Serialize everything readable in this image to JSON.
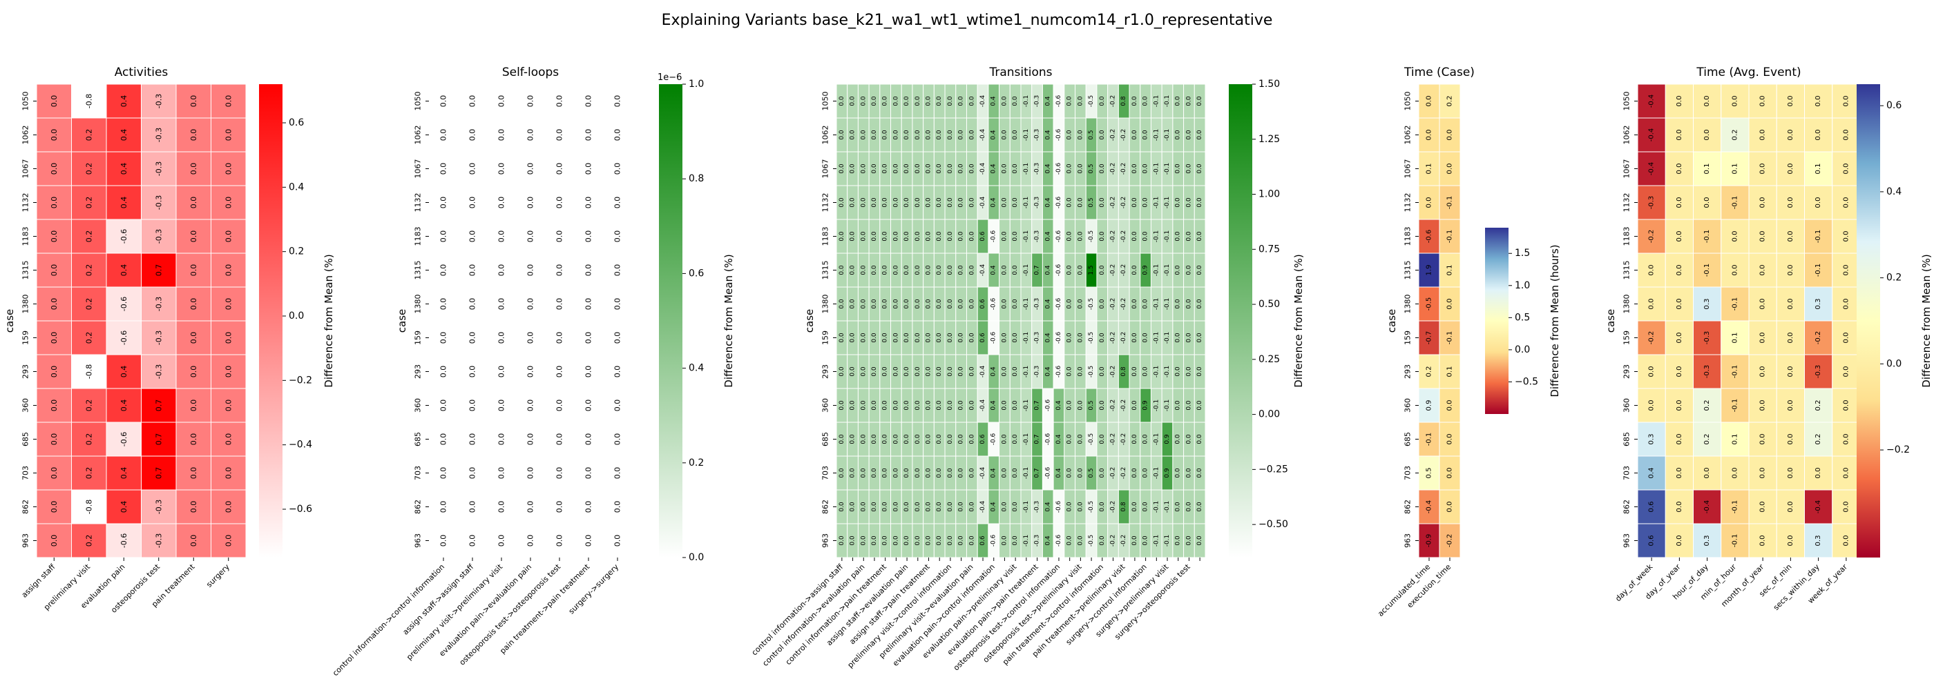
{
  "figure": {
    "title": "Explaining Variants base_k21_wa1_wt1_wtime1_numcom14_r1.0_representative"
  },
  "chart_data": [
    {
      "type": "heatmap",
      "title": "Activities",
      "ylabel": "case",
      "colorbar_label": "Difference from Mean (%)",
      "colormap": [
        "#ffffff",
        "#ff0000"
      ],
      "vmin": -0.75,
      "vmax": 0.72,
      "colorbar_ticks": [
        -0.6,
        -0.4,
        -0.2,
        0.0,
        0.2,
        0.4,
        0.6
      ],
      "colorbar_tick_labels": [
        "−0.6",
        "−0.4",
        "−0.2",
        "0.0",
        "0.2",
        "0.4",
        "0.6"
      ],
      "rows": [
        "1050",
        "1062",
        "1067",
        "1132",
        "1183",
        "1315",
        "1380",
        "159",
        "293",
        "360",
        "685",
        "703",
        "862",
        "963"
      ],
      "columns": [
        "assign staff",
        "preliminary visit",
        "evaluation pain",
        "osteoporosis test",
        "pain treatment",
        "surgery"
      ],
      "values": [
        [
          0.0,
          -0.8,
          0.4,
          -0.3,
          0.0,
          0.0
        ],
        [
          0.0,
          0.2,
          0.4,
          -0.3,
          0.0,
          0.0
        ],
        [
          0.0,
          0.2,
          0.4,
          -0.3,
          0.0,
          0.0
        ],
        [
          0.0,
          0.2,
          0.4,
          -0.3,
          0.0,
          0.0
        ],
        [
          0.0,
          0.2,
          -0.6,
          -0.3,
          0.0,
          0.0
        ],
        [
          0.0,
          0.2,
          0.4,
          0.7,
          0.0,
          0.0
        ],
        [
          0.0,
          0.2,
          -0.6,
          -0.3,
          0.0,
          0.0
        ],
        [
          0.0,
          0.2,
          -0.6,
          -0.3,
          0.0,
          0.0
        ],
        [
          0.0,
          -0.8,
          0.4,
          -0.3,
          0.0,
          0.0
        ],
        [
          0.0,
          0.2,
          0.4,
          0.7,
          0.0,
          0.0
        ],
        [
          0.0,
          0.2,
          -0.6,
          0.7,
          0.0,
          0.0
        ],
        [
          0.0,
          0.2,
          0.4,
          0.7,
          0.0,
          0.0
        ],
        [
          0.0,
          -0.8,
          0.4,
          -0.3,
          0.0,
          0.0
        ],
        [
          0.0,
          0.2,
          -0.6,
          -0.3,
          0.0,
          0.0
        ]
      ]
    },
    {
      "type": "heatmap",
      "title": "Self-loops",
      "ylabel": "case",
      "colorbar_label": "Difference from Mean (%)",
      "colormap": [
        "#ffffff",
        "#008000"
      ],
      "vmin": 0.0,
      "vmax": 1.0,
      "colorbar_ticks": [
        0.0,
        0.2,
        0.4,
        0.6,
        0.8,
        1.0
      ],
      "colorbar_tick_labels": [
        "0.0",
        "0.2",
        "0.4",
        "0.6",
        "0.8",
        "1.0"
      ],
      "colorbar_offset_text": "1e−6",
      "rows": [
        "1050",
        "1062",
        "1067",
        "1132",
        "1183",
        "1315",
        "1380",
        "159",
        "293",
        "360",
        "685",
        "703",
        "862",
        "963"
      ],
      "columns": [
        "control information->control information",
        "assign staff->assign staff",
        "preliminary visit->preliminary visit",
        "evaluation pain->evaluation pain",
        "osteoporosis test->osteoporosis test",
        "pain treatment->pain treatment",
        "surgery->surgery"
      ],
      "values": [
        [
          0.0,
          0.0,
          0.0,
          0.0,
          0.0,
          0.0,
          0.0
        ],
        [
          0.0,
          0.0,
          0.0,
          0.0,
          0.0,
          0.0,
          0.0
        ],
        [
          0.0,
          0.0,
          0.0,
          0.0,
          0.0,
          0.0,
          0.0
        ],
        [
          0.0,
          0.0,
          0.0,
          0.0,
          0.0,
          0.0,
          0.0
        ],
        [
          0.0,
          0.0,
          0.0,
          0.0,
          0.0,
          0.0,
          0.0
        ],
        [
          0.0,
          0.0,
          0.0,
          0.0,
          0.0,
          0.0,
          0.0
        ],
        [
          0.0,
          0.0,
          0.0,
          0.0,
          0.0,
          0.0,
          0.0
        ],
        [
          0.0,
          0.0,
          0.0,
          0.0,
          0.0,
          0.0,
          0.0
        ],
        [
          0.0,
          0.0,
          0.0,
          0.0,
          0.0,
          0.0,
          0.0
        ],
        [
          0.0,
          0.0,
          0.0,
          0.0,
          0.0,
          0.0,
          0.0
        ],
        [
          0.0,
          0.0,
          0.0,
          0.0,
          0.0,
          0.0,
          0.0
        ],
        [
          0.0,
          0.0,
          0.0,
          0.0,
          0.0,
          0.0,
          0.0
        ],
        [
          0.0,
          0.0,
          0.0,
          0.0,
          0.0,
          0.0,
          0.0
        ],
        [
          0.0,
          0.0,
          0.0,
          0.0,
          0.0,
          0.0,
          0.0
        ]
      ]
    },
    {
      "type": "heatmap",
      "title": "Transitions",
      "ylabel": "case",
      "colorbar_label": "Difference from Mean (%)",
      "colormap": [
        "#ffffff",
        "#008000"
      ],
      "vmin": -0.65,
      "vmax": 1.5,
      "colorbar_ticks": [
        -0.5,
        -0.25,
        0.0,
        0.25,
        0.5,
        0.75,
        1.0,
        1.25,
        1.5
      ],
      "colorbar_tick_labels": [
        "−0.50",
        "−0.25",
        "0.00",
        "0.25",
        "0.50",
        "0.75",
        "1.00",
        "1.25",
        "1.50"
      ],
      "rows": [
        "1050",
        "1062",
        "1067",
        "1132",
        "1183",
        "1315",
        "1380",
        "159",
        "293",
        "360",
        "685",
        "703",
        "862",
        "963"
      ],
      "columns": [
        "control information->assign staff",
        "",
        "control information->evaluation pain",
        "",
        "control information->pain treatment",
        "",
        "assign staff->evaluation pain",
        "",
        "assign staff->pain treatment",
        "",
        "preliminary visit->control information",
        "",
        "preliminary visit->evaluation pain",
        "",
        "evaluation pain->control information",
        "",
        "evaluation pain->preliminary visit",
        "",
        "evaluation pain->pain treatment",
        "",
        "osteoporosis test->control information",
        "",
        "osteoporosis test->preliminary visit",
        "",
        "pain treatment->control information",
        "",
        "pain treatment->preliminary visit",
        "",
        "surgery->control information",
        "",
        "surgery->preliminary visit",
        "",
        "surgery->osteoporosis test",
        ""
      ],
      "values": [
        [
          0.0,
          0.0,
          0.0,
          0.0,
          0.0,
          0.0,
          0.0,
          0.0,
          0.0,
          0.0,
          0.0,
          0.0,
          0.0,
          -0.4,
          0.4,
          0.0,
          0.0,
          -0.1,
          -0.3,
          0.4,
          -0.6,
          0.0,
          0.0,
          -0.5,
          0.0,
          -0.2,
          0.8,
          0.0,
          0.0,
          -0.1,
          -0.1,
          0.0,
          0.0,
          0.0
        ],
        [
          0.0,
          0.0,
          0.0,
          0.0,
          0.0,
          0.0,
          0.0,
          0.0,
          0.0,
          0.0,
          0.0,
          0.0,
          0.0,
          -0.4,
          0.4,
          0.0,
          0.0,
          -0.1,
          -0.3,
          0.4,
          -0.6,
          0.0,
          0.0,
          0.5,
          0.0,
          -0.2,
          -0.2,
          0.0,
          0.0,
          -0.1,
          -0.1,
          0.0,
          0.0,
          0.0
        ],
        [
          0.0,
          0.0,
          0.0,
          0.0,
          0.0,
          0.0,
          0.0,
          0.0,
          0.0,
          0.0,
          0.0,
          0.0,
          0.0,
          -0.4,
          0.4,
          0.0,
          0.0,
          -0.1,
          -0.3,
          0.4,
          -0.6,
          0.0,
          0.0,
          0.5,
          0.0,
          -0.2,
          -0.2,
          0.0,
          0.0,
          -0.1,
          -0.1,
          0.0,
          0.0,
          0.0
        ],
        [
          0.0,
          0.0,
          0.0,
          0.0,
          0.0,
          0.0,
          0.0,
          0.0,
          0.0,
          0.0,
          0.0,
          0.0,
          0.0,
          -0.4,
          0.4,
          0.0,
          0.0,
          -0.1,
          -0.3,
          0.4,
          -0.6,
          0.0,
          0.0,
          0.5,
          0.0,
          -0.2,
          -0.2,
          0.0,
          0.0,
          -0.1,
          -0.1,
          0.0,
          0.0,
          0.0
        ],
        [
          0.0,
          0.0,
          0.0,
          0.0,
          0.0,
          0.0,
          0.0,
          0.0,
          0.0,
          0.0,
          0.0,
          0.0,
          0.0,
          0.6,
          -0.6,
          0.0,
          0.0,
          -0.1,
          -0.3,
          0.4,
          -0.6,
          0.0,
          0.0,
          -0.5,
          0.0,
          -0.2,
          -0.2,
          0.0,
          0.0,
          -0.1,
          -0.1,
          0.0,
          0.0,
          0.0
        ],
        [
          0.0,
          0.0,
          0.0,
          0.0,
          0.0,
          0.0,
          0.0,
          0.0,
          0.0,
          0.0,
          0.0,
          0.0,
          0.0,
          -0.4,
          0.4,
          0.0,
          0.0,
          -0.1,
          0.7,
          0.4,
          -0.6,
          0.0,
          0.0,
          1.5,
          0.0,
          -0.2,
          -0.2,
          0.0,
          0.9,
          -0.1,
          -0.1,
          0.0,
          0.0,
          0.0
        ],
        [
          0.0,
          0.0,
          0.0,
          0.0,
          0.0,
          0.0,
          0.0,
          0.0,
          0.0,
          0.0,
          0.0,
          0.0,
          0.0,
          0.6,
          -0.6,
          0.0,
          0.0,
          -0.1,
          -0.3,
          0.4,
          -0.6,
          0.0,
          0.0,
          -0.5,
          0.0,
          -0.2,
          -0.2,
          0.0,
          0.0,
          -0.1,
          -0.1,
          0.0,
          0.0,
          0.0
        ],
        [
          0.0,
          0.0,
          0.0,
          0.0,
          0.0,
          0.0,
          0.0,
          0.0,
          0.0,
          0.0,
          0.0,
          0.0,
          0.0,
          0.6,
          -0.6,
          0.0,
          0.0,
          -0.1,
          -0.3,
          0.4,
          -0.6,
          0.0,
          0.0,
          -0.5,
          0.0,
          -0.2,
          -0.2,
          0.0,
          0.0,
          -0.1,
          -0.1,
          0.0,
          0.0,
          0.0
        ],
        [
          0.0,
          0.0,
          0.0,
          0.0,
          0.0,
          0.0,
          0.0,
          0.0,
          0.0,
          0.0,
          0.0,
          0.0,
          0.0,
          -0.4,
          0.4,
          0.0,
          0.0,
          -0.1,
          -0.3,
          0.4,
          -0.6,
          0.0,
          0.0,
          -0.5,
          0.0,
          -0.2,
          0.8,
          0.0,
          0.0,
          -0.1,
          -0.1,
          0.0,
          0.0,
          0.0
        ],
        [
          0.0,
          0.0,
          0.0,
          0.0,
          0.0,
          0.0,
          0.0,
          0.0,
          0.0,
          0.0,
          0.0,
          0.0,
          0.0,
          -0.4,
          0.4,
          0.0,
          0.0,
          -0.1,
          0.7,
          -0.6,
          0.4,
          0.0,
          0.0,
          0.5,
          0.0,
          -0.2,
          -0.2,
          0.0,
          0.9,
          -0.1,
          -0.1,
          0.0,
          0.0,
          0.0
        ],
        [
          0.0,
          0.0,
          0.0,
          0.0,
          0.0,
          0.0,
          0.0,
          0.0,
          0.0,
          0.0,
          0.0,
          0.0,
          0.0,
          0.6,
          -0.6,
          0.0,
          0.0,
          -0.1,
          0.7,
          -0.6,
          0.4,
          0.0,
          0.0,
          -0.5,
          0.0,
          -0.2,
          -0.2,
          0.0,
          0.0,
          -0.1,
          0.9,
          0.0,
          0.0,
          0.0
        ],
        [
          0.0,
          0.0,
          0.0,
          0.0,
          0.0,
          0.0,
          0.0,
          0.0,
          0.0,
          0.0,
          0.0,
          0.0,
          0.0,
          -0.4,
          0.4,
          0.0,
          0.0,
          -0.1,
          0.7,
          -0.6,
          0.4,
          0.0,
          0.0,
          0.5,
          0.0,
          -0.2,
          -0.2,
          0.0,
          0.0,
          -0.1,
          0.9,
          0.0,
          0.0,
          0.0
        ],
        [
          0.0,
          0.0,
          0.0,
          0.0,
          0.0,
          0.0,
          0.0,
          0.0,
          0.0,
          0.0,
          0.0,
          0.0,
          0.0,
          -0.4,
          0.4,
          0.0,
          0.0,
          -0.1,
          -0.3,
          0.4,
          -0.6,
          0.0,
          0.0,
          -0.5,
          0.0,
          -0.2,
          0.8,
          0.0,
          0.0,
          -0.1,
          -0.1,
          0.0,
          0.0,
          0.0
        ],
        [
          0.0,
          0.0,
          0.0,
          0.0,
          0.0,
          0.0,
          0.0,
          0.0,
          0.0,
          0.0,
          0.0,
          0.0,
          0.0,
          0.6,
          -0.6,
          0.0,
          0.0,
          -0.1,
          -0.3,
          0.4,
          -0.6,
          0.0,
          0.0,
          -0.5,
          0.0,
          -0.2,
          -0.2,
          0.0,
          0.0,
          -0.1,
          -0.1,
          0.0,
          0.0,
          0.0
        ]
      ]
    },
    {
      "type": "heatmap",
      "title": "Time (Case)",
      "ylabel": "case",
      "colorbar_label": "Difference from Mean (hours)",
      "colormap": [
        "#a50026",
        "#f46d43",
        "#fee090",
        "#ffffbf",
        "#e0f3f8",
        "#74add1",
        "#313695"
      ],
      "vmin": -1.0,
      "vmax": 1.9,
      "colorbar_ticks": [
        -0.5,
        0.0,
        0.5,
        1.0,
        1.5
      ],
      "colorbar_tick_labels": [
        "−0.5",
        "0.0",
        "0.5",
        "1.0",
        "1.5"
      ],
      "rows": [
        "1050",
        "1062",
        "1067",
        "1132",
        "1183",
        "1315",
        "1380",
        "159",
        "293",
        "360",
        "685",
        "703",
        "862",
        "963"
      ],
      "columns": [
        "accumulated_time",
        "execution_time"
      ],
      "values": [
        [
          0.0,
          0.2
        ],
        [
          0.0,
          0.0
        ],
        [
          0.1,
          0.0
        ],
        [
          -0.0,
          -0.1
        ],
        [
          -0.6,
          -0.1
        ],
        [
          1.9,
          0.1
        ],
        [
          -0.5,
          -0.0
        ],
        [
          -0.7,
          -0.1
        ],
        [
          0.2,
          0.1
        ],
        [
          0.9,
          -0.0
        ],
        [
          -0.1,
          0.0
        ],
        [
          0.5,
          0.0
        ],
        [
          -0.4,
          0.0
        ],
        [
          -0.9,
          -0.2
        ]
      ]
    },
    {
      "type": "heatmap",
      "title": "Time (Avg. Event)",
      "ylabel": "case",
      "colorbar_label": "Difference from Mean (%)",
      "colormap": [
        "#a50026",
        "#f46d43",
        "#fee090",
        "#ffffbf",
        "#e0f3f8",
        "#74add1",
        "#313695"
      ],
      "vmin": -0.45,
      "vmax": 0.65,
      "colorbar_ticks": [
        -0.2,
        0.0,
        0.2,
        0.4,
        0.6
      ],
      "colorbar_tick_labels": [
        "−0.2",
        "0.0",
        "0.2",
        "0.4",
        "0.6"
      ],
      "rows": [
        "1050",
        "1062",
        "1067",
        "1132",
        "1183",
        "1315",
        "1380",
        "159",
        "293",
        "360",
        "685",
        "703",
        "862",
        "963"
      ],
      "columns": [
        "day_of_week",
        "day_of_year",
        "hour_of_day",
        "min_of_hour",
        "month_of_year",
        "sec_of_min",
        "secs_within_day",
        "week_of_year"
      ],
      "values": [
        [
          -0.4,
          0.0,
          -0.0,
          0.0,
          0.0,
          0.0,
          -0.0,
          0.0
        ],
        [
          -0.4,
          0.0,
          0.0,
          0.2,
          0.0,
          0.0,
          0.0,
          0.0
        ],
        [
          -0.4,
          0.0,
          0.1,
          0.1,
          0.0,
          0.0,
          0.1,
          0.0
        ],
        [
          -0.3,
          0.0,
          0.0,
          -0.1,
          0.0,
          0.0,
          0.0,
          0.0
        ],
        [
          -0.2,
          0.0,
          -0.1,
          0.0,
          0.0,
          0.0,
          -0.1,
          0.0
        ],
        [
          -0.0,
          0.0,
          -0.1,
          -0.0,
          0.0,
          0.0,
          -0.1,
          0.0
        ],
        [
          -0.0,
          -0.0,
          0.3,
          -0.1,
          0.0,
          0.0,
          0.3,
          -0.0
        ],
        [
          -0.2,
          -0.0,
          -0.3,
          0.1,
          0.0,
          0.0,
          -0.2,
          -0.0
        ],
        [
          -0.0,
          -0.0,
          -0.3,
          -0.1,
          0.0,
          0.0,
          -0.3,
          -0.0
        ],
        [
          -0.0,
          -0.0,
          0.2,
          -0.1,
          0.0,
          0.0,
          0.2,
          -0.0
        ],
        [
          0.3,
          -0.0,
          0.2,
          0.1,
          0.0,
          0.0,
          0.2,
          -0.0
        ],
        [
          0.4,
          -0.0,
          0.0,
          0.0,
          0.0,
          0.0,
          0.0,
          -0.0
        ],
        [
          0.6,
          0.0,
          -0.4,
          -0.1,
          0.0,
          0.0,
          -0.4,
          0.0
        ],
        [
          0.6,
          0.0,
          0.3,
          -0.1,
          0.0,
          0.0,
          0.3,
          -0.0
        ]
      ]
    }
  ]
}
